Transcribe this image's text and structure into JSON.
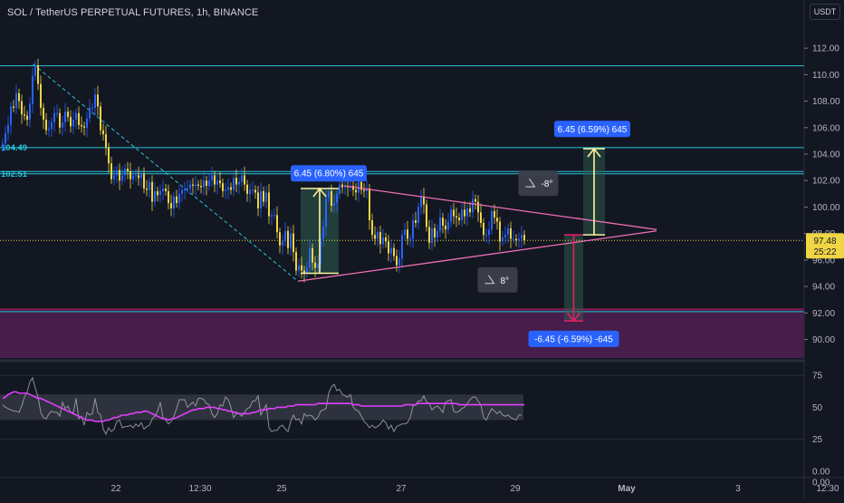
{
  "header": {
    "title": "SOL / TetherUS PERPETUAL FUTURES, 1h, BINANCE",
    "currency": "USDT"
  },
  "colors": {
    "background": "#131722",
    "candle_up": "#2962ff",
    "candle_down": "#f0d544",
    "triangle": "#f06fb5",
    "horizontal_level": "#26c6da",
    "support_zone": "#4a1d4f",
    "rsi_line": "#e040fb"
  },
  "chart_data": [
    {
      "type": "line",
      "name": "price",
      "title": "SOL / TetherUS PERPETUAL FUTURES, 1h, BINANCE",
      "ylim": [
        88.6,
        112.9
      ],
      "y_ticks": [
        "112.00",
        "110.00",
        "108.00",
        "106.00",
        "104.00",
        "102.00",
        "100.00",
        "98.00",
        "96.00",
        "94.00",
        "92.00",
        "90.00"
      ],
      "y_tick_values": [
        112,
        110,
        108,
        106,
        104,
        102,
        100,
        98,
        96,
        94,
        92,
        90
      ],
      "x_ticks": [
        "22",
        "12:30",
        "25",
        "27",
        "29",
        "May",
        "3",
        "12:30"
      ],
      "x_tick_index": [
        42,
        73,
        103,
        147,
        189,
        230,
        271,
        304
      ],
      "series": [
        {
          "values": [
            104.8,
            105.6,
            106.2,
            107.6,
            107.5,
            108.6,
            108.0,
            107.0,
            106.9,
            106.6,
            107.8,
            109.9,
            110.7,
            109.3,
            107.5,
            106.6,
            105.8,
            105.9,
            106.4,
            107.1,
            107.1,
            106.0,
            106.4,
            107.2,
            106.8,
            106.1,
            106.6,
            107.1,
            106.2,
            106.1,
            106.0,
            106.7,
            107.5,
            107.5,
            108.5,
            107.6,
            105.8,
            105.5,
            104.5,
            103.3,
            102.1,
            102.4,
            102.8,
            102.0,
            102.4,
            102.9,
            102.7,
            102.1,
            102.4,
            102.4,
            102.2,
            102.5,
            101.4,
            101.3,
            101.9,
            100.4,
            101.2,
            100.9,
            101.2,
            101.4,
            101.2,
            100.3,
            99.9,
            100.8,
            100.3,
            101.0,
            101.3,
            101.4,
            101.4,
            101.7,
            101.6,
            101.7,
            101.6,
            101.5,
            102.0,
            101.6,
            102.0,
            102.4,
            101.7,
            102.0,
            101.8,
            101.2,
            101.3,
            101.5,
            101.3,
            102.2,
            101.7,
            101.9,
            102.4,
            101.7,
            101.0,
            101.3,
            101.3,
            101.1,
            99.9,
            101.2,
            100.4,
            101.1,
            99.3,
            99.4,
            99.4,
            98.1,
            97.1,
            97.4,
            98.2,
            96.9,
            98.0,
            96.6,
            95.2,
            95.6,
            95.2,
            95.0,
            95.4,
            96.9,
            95.8,
            95.4,
            95.7,
            97.6,
            98.5,
            100.7,
            101.2,
            100.1,
            100.3,
            101.0,
            101.7,
            101.5,
            101.6,
            101.5,
            101.6,
            101.3,
            101.1,
            101.9,
            101.3,
            101.2,
            101.4,
            99.0,
            97.9,
            97.6,
            98.1,
            97.2,
            97.7,
            97.4,
            96.5,
            96.9,
            96.3,
            95.6,
            96.1,
            97.9,
            98.3,
            97.6,
            97.6,
            99.0,
            98.8,
            100.0,
            100.8,
            100.2,
            98.5,
            97.3,
            98.4,
            97.7,
            98.2,
            99.2,
            98.6,
            98.3,
            98.9,
            99.8,
            99.3,
            99.2,
            99.0,
            99.8,
            99.3,
            99.9,
            99.6,
            100.6,
            100.4,
            99.6,
            98.8,
            97.9,
            97.9,
            98.3,
            99.7,
            99.2,
            98.9,
            97.4,
            97.7,
            97.9,
            98.4,
            97.6,
            97.6,
            97.5,
            97.6,
            97.9,
            97.5
          ]
        }
      ],
      "levels": [
        {
          "label": "",
          "value": 110.67
        },
        {
          "label": "104.49",
          "value": 104.49
        },
        {
          "label": "102.51",
          "value": 102.51
        },
        {
          "label": "",
          "value": 102.68
        },
        {
          "label": "",
          "value": 92.1
        }
      ],
      "support_zone": [
        88.6,
        92.3
      ],
      "current_price": {
        "value_label": "97.48",
        "countdown": "25:22",
        "value": 97.48
      },
      "annotations": {
        "measure_up_past": "6.45 (6.80%) 645",
        "measure_up_target": "6.45 (6.59%) 645",
        "measure_down_target": "-6.45 (-6.59%) -645",
        "angle_upper": "-8°",
        "angle_lower": "8°"
      }
    },
    {
      "type": "line",
      "name": "rsi",
      "ylim": [
        0,
        85
      ],
      "y_ticks": [
        "75",
        "50",
        "25",
        "0.00",
        "0.00"
      ],
      "y_tick_values": [
        75,
        50,
        25,
        0,
        0
      ],
      "band": [
        40,
        60
      ],
      "series": [
        {
          "name": "rsi",
          "values": [
            52,
            50,
            49,
            48,
            47,
            47,
            46,
            51,
            58,
            62,
            70,
            73,
            65,
            58,
            46,
            42,
            41,
            45,
            47,
            46,
            46,
            43,
            54,
            49,
            51,
            46,
            46,
            57,
            41,
            43,
            36,
            46,
            44,
            45,
            57,
            46,
            44,
            33,
            29,
            34,
            31,
            33,
            39,
            40,
            34,
            35,
            35,
            36,
            34,
            37,
            35,
            38,
            33,
            35,
            36,
            41,
            43,
            47,
            54,
            42,
            40,
            37,
            39,
            43,
            49,
            56,
            56,
            56,
            50,
            52,
            54,
            51,
            57,
            57,
            56,
            53,
            52,
            45,
            42,
            45,
            52,
            51,
            58,
            56,
            50,
            42,
            45,
            45,
            43,
            46,
            49,
            50,
            55,
            55,
            59,
            44,
            48,
            52,
            34,
            31,
            32,
            32,
            35,
            36,
            33,
            31,
            39,
            44,
            40,
            41,
            37,
            45,
            43,
            44,
            43,
            40,
            42,
            47,
            48,
            49,
            61,
            66,
            68,
            63,
            64,
            60,
            59,
            58,
            60,
            50,
            48,
            47,
            43,
            39,
            37,
            34,
            36,
            34,
            35,
            37,
            40,
            38,
            33,
            36,
            31,
            35,
            36,
            37,
            37,
            38,
            42,
            51,
            52,
            55,
            55,
            59,
            54,
            53,
            48,
            50,
            51,
            49,
            46,
            54,
            55,
            56,
            47,
            46,
            47,
            49,
            50,
            53,
            56,
            58,
            58,
            55,
            52,
            42,
            40,
            45,
            49,
            47,
            45,
            47,
            44,
            43,
            44,
            42,
            41,
            40,
            44,
            44
          ]
        },
        {
          "name": "rsi-ma",
          "values": [
            57,
            58,
            60,
            61,
            62,
            62,
            61,
            61,
            61,
            61,
            60,
            59,
            58,
            57,
            57,
            56,
            55,
            54,
            53,
            52,
            51,
            50,
            49,
            48,
            47,
            46,
            45,
            44,
            43,
            42,
            41,
            40,
            40,
            40,
            39,
            39,
            39,
            39,
            40,
            40,
            41,
            42,
            42,
            43,
            44,
            44,
            44,
            45,
            45,
            46,
            46,
            46,
            47,
            47,
            46,
            45,
            44,
            43,
            42,
            41,
            41,
            40,
            41,
            41,
            42,
            43,
            44,
            45,
            46,
            47,
            48,
            48,
            49,
            49,
            49,
            50,
            50,
            50,
            50,
            49,
            49,
            48,
            48,
            47,
            47,
            46,
            46,
            45,
            45,
            45,
            45,
            45,
            46,
            46,
            47,
            48,
            48,
            48,
            49,
            49,
            49,
            50,
            50,
            50,
            50,
            51,
            51,
            51,
            52,
            52,
            52,
            52,
            52,
            52,
            52,
            52,
            53,
            53,
            53,
            53,
            53,
            53,
            53,
            53,
            53,
            53,
            53,
            53,
            53,
            52,
            52,
            52,
            51,
            51,
            51,
            51,
            51,
            51,
            51,
            51,
            51,
            51,
            51,
            51,
            51,
            51,
            51,
            51,
            52,
            52,
            52,
            52,
            52,
            53,
            53,
            53,
            53,
            53,
            53,
            53,
            53,
            53,
            53,
            53,
            53,
            53,
            53,
            53,
            52,
            52,
            52,
            52,
            52,
            52,
            52,
            52,
            52,
            52,
            52,
            52,
            52,
            52,
            52,
            52,
            52,
            52,
            52,
            52,
            52,
            52,
            52,
            52,
            52
          ]
        }
      ]
    }
  ]
}
